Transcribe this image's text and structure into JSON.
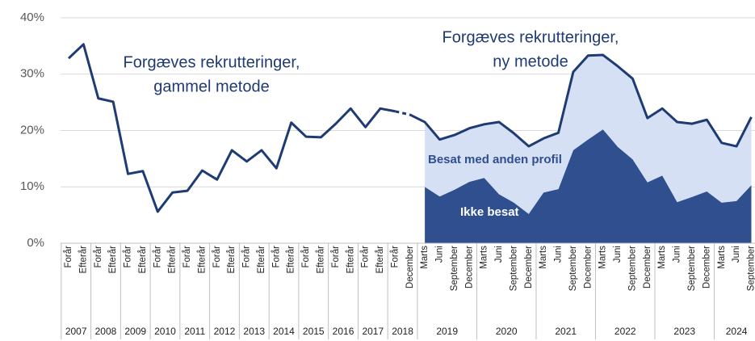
{
  "chart_data": {
    "type": "line_area",
    "categories": [
      "Forår",
      "Efterår",
      "Forår",
      "Efterår",
      "Forår",
      "Efterår",
      "Forår",
      "Efterår",
      "Forår",
      "Efterår",
      "Forår",
      "Efterår",
      "Forår",
      "Efterår",
      "Forår",
      "Efterår",
      "Forår",
      "Efterår",
      "Forår",
      "Efterår",
      "Forår",
      "Efterår",
      "Forår",
      "December",
      "Marts",
      "Juni",
      "September",
      "December",
      "Marts",
      "Juni",
      "September",
      "December",
      "Marts",
      "Juni",
      "September",
      "December",
      "Marts",
      "Juni",
      "September",
      "December",
      "Marts",
      "Juni",
      "September",
      "December",
      "Marts",
      "Juni",
      "September"
    ],
    "groups": [
      {
        "label": "2007",
        "count": 2
      },
      {
        "label": "2008",
        "count": 2
      },
      {
        "label": "2009",
        "count": 2
      },
      {
        "label": "2010",
        "count": 2
      },
      {
        "label": "2011",
        "count": 2
      },
      {
        "label": "2012",
        "count": 2
      },
      {
        "label": "2013",
        "count": 2
      },
      {
        "label": "2014",
        "count": 2
      },
      {
        "label": "2015",
        "count": 2
      },
      {
        "label": "2016",
        "count": 2
      },
      {
        "label": "2017",
        "count": 2
      },
      {
        "label": "2018",
        "count": 2
      },
      {
        "label": "2019",
        "count": 4
      },
      {
        "label": "2020",
        "count": 4
      },
      {
        "label": "2021",
        "count": 4
      },
      {
        "label": "2022",
        "count": 4
      },
      {
        "label": "2023",
        "count": 4
      },
      {
        "label": "2024",
        "count": 3
      }
    ],
    "series": [
      {
        "kind": "line",
        "color": "#1f3b73",
        "label_lines": [
          "Forgæves rekrutteringer,",
          "gammel metode"
        ],
        "values": [
          32.8,
          35.3,
          25.7,
          25.1,
          12.3,
          12.8,
          5.6,
          9.0,
          9.3,
          12.9,
          11.3,
          16.5,
          14.5,
          16.5,
          13.3,
          21.4,
          18.9,
          18.8,
          21.2,
          23.9,
          20.6,
          23.9,
          23.4,
          null,
          null,
          null,
          null,
          null,
          null,
          null,
          null,
          null,
          null,
          null,
          null,
          null,
          null,
          null,
          null,
          null,
          null,
          null,
          null,
          null,
          null,
          null,
          null
        ]
      },
      {
        "kind": "line",
        "color": "#1f3b73",
        "label_lines": [
          "Forgæves rekrutteringer,",
          "ny metode"
        ],
        "values": [
          null,
          null,
          null,
          null,
          null,
          null,
          null,
          null,
          null,
          null,
          null,
          null,
          null,
          null,
          null,
          null,
          null,
          null,
          null,
          null,
          null,
          null,
          null,
          22.8,
          21.5,
          18.4,
          19.2,
          20.4,
          21.1,
          21.5,
          19.5,
          17.2,
          18.6,
          19.6,
          30.4,
          33.3,
          33.4,
          31.4,
          29.2,
          22.2,
          23.9,
          21.5,
          21.2,
          21.9,
          17.8,
          17.2,
          22.4
        ]
      },
      {
        "kind": "area",
        "name": "Ikke besat",
        "color": "#2f4f8f",
        "values": [
          null,
          null,
          null,
          null,
          null,
          null,
          null,
          null,
          null,
          null,
          null,
          null,
          null,
          null,
          null,
          null,
          null,
          null,
          null,
          null,
          null,
          null,
          null,
          null,
          10.0,
          8.3,
          9.5,
          10.9,
          11.6,
          8.7,
          7.2,
          5.2,
          9.0,
          9.6,
          16.5,
          18.4,
          20.2,
          17.1,
          14.9,
          10.8,
          12.0,
          7.3,
          8.2,
          9.2,
          7.2,
          7.5,
          10.3
        ]
      },
      {
        "kind": "area",
        "name": "Besat med anden profil",
        "color": "#d6e0f5",
        "values": [
          null,
          null,
          null,
          null,
          null,
          null,
          null,
          null,
          null,
          null,
          null,
          null,
          null,
          null,
          null,
          null,
          null,
          null,
          null,
          null,
          null,
          null,
          null,
          null,
          11.5,
          10.1,
          9.7,
          9.5,
          9.5,
          12.8,
          12.3,
          12.0,
          9.6,
          10.0,
          13.9,
          14.9,
          13.2,
          14.3,
          14.3,
          11.4,
          11.9,
          14.2,
          13.0,
          12.7,
          10.6,
          9.7,
          12.1
        ]
      }
    ],
    "ylim": [
      0,
      40
    ],
    "yticks": [
      {
        "value": 0,
        "label": "0%"
      },
      {
        "value": 10,
        "label": "10%"
      },
      {
        "value": 20,
        "label": "20%"
      },
      {
        "value": 30,
        "label": "30%"
      },
      {
        "value": 40,
        "label": "40%"
      }
    ],
    "grid": true
  }
}
